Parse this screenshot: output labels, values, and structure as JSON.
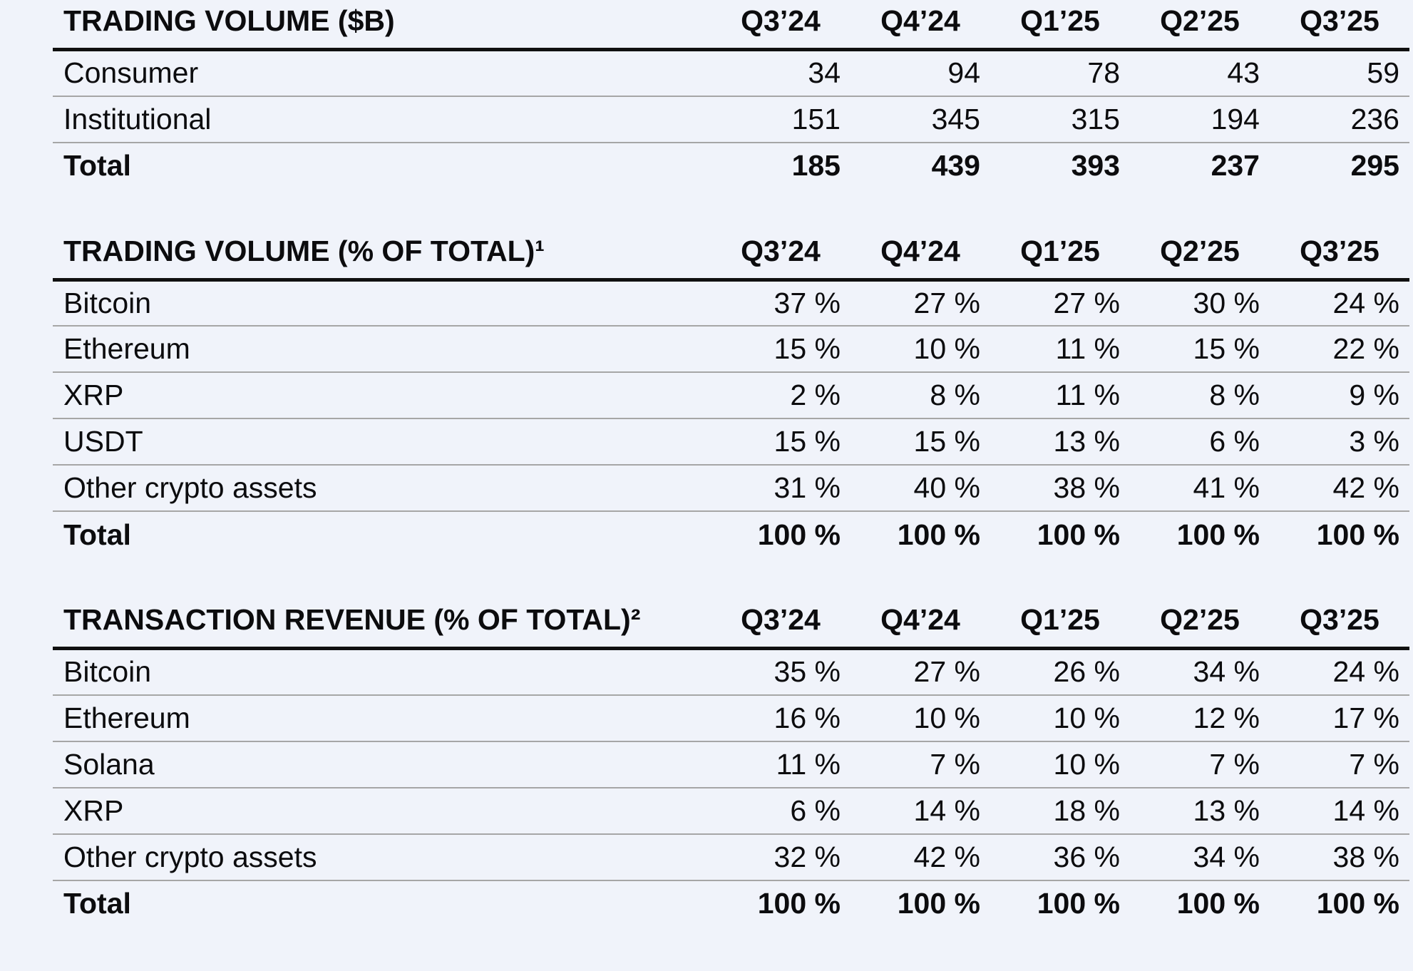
{
  "page": {
    "background_color": "#f0f3fa",
    "text_color": "#0c0c0e",
    "header_rule_color": "#101010",
    "row_rule_color": "#a6a6a6"
  },
  "columns": [
    "Q3’24",
    "Q4’24",
    "Q1’25",
    "Q2’25",
    "Q3’25"
  ],
  "tables": [
    {
      "title": "TRADING VOLUME ($B)",
      "rows": [
        {
          "label": "Consumer",
          "values": [
            "34",
            "94",
            "78",
            "43",
            "59"
          ],
          "bold": false
        },
        {
          "label": "Institutional",
          "values": [
            "151",
            "345",
            "315",
            "194",
            "236"
          ],
          "bold": false
        },
        {
          "label": "Total",
          "values": [
            "185",
            "439",
            "393",
            "237",
            "295"
          ],
          "bold": true
        }
      ]
    },
    {
      "title": "TRADING VOLUME (% OF TOTAL)¹",
      "rows": [
        {
          "label": "Bitcoin",
          "values": [
            "37 %",
            "27 %",
            "27 %",
            "30 %",
            "24 %"
          ],
          "bold": false
        },
        {
          "label": "Ethereum",
          "values": [
            "15 %",
            "10 %",
            "11 %",
            "15 %",
            "22 %"
          ],
          "bold": false
        },
        {
          "label": "XRP",
          "values": [
            "2 %",
            "8 %",
            "11 %",
            "8 %",
            "9 %"
          ],
          "bold": false
        },
        {
          "label": "USDT",
          "values": [
            "15 %",
            "15 %",
            "13 %",
            "6 %",
            "3 %"
          ],
          "bold": false
        },
        {
          "label": "Other crypto assets",
          "values": [
            "31 %",
            "40 %",
            "38 %",
            "41 %",
            "42 %"
          ],
          "bold": false
        },
        {
          "label": "Total",
          "values": [
            "100 %",
            "100 %",
            "100 %",
            "100 %",
            "100 %"
          ],
          "bold": true
        }
      ]
    },
    {
      "title": "TRANSACTION REVENUE (% OF TOTAL)²",
      "rows": [
        {
          "label": "Bitcoin",
          "values": [
            "35 %",
            "27 %",
            "26 %",
            "34 %",
            "24 %"
          ],
          "bold": false
        },
        {
          "label": "Ethereum",
          "values": [
            "16 %",
            "10 %",
            "10 %",
            "12 %",
            "17 %"
          ],
          "bold": false
        },
        {
          "label": "Solana",
          "values": [
            "11 %",
            "7 %",
            "10 %",
            "7 %",
            "7 %"
          ],
          "bold": false
        },
        {
          "label": "XRP",
          "values": [
            "6 %",
            "14 %",
            "18 %",
            "13 %",
            "14 %"
          ],
          "bold": false
        },
        {
          "label": "Other crypto assets",
          "values": [
            "32 %",
            "42 %",
            "36 %",
            "34 %",
            "38 %"
          ],
          "bold": false
        },
        {
          "label": "Total",
          "values": [
            "100 %",
            "100 %",
            "100 %",
            "100 %",
            "100 %"
          ],
          "bold": true
        }
      ]
    }
  ]
}
